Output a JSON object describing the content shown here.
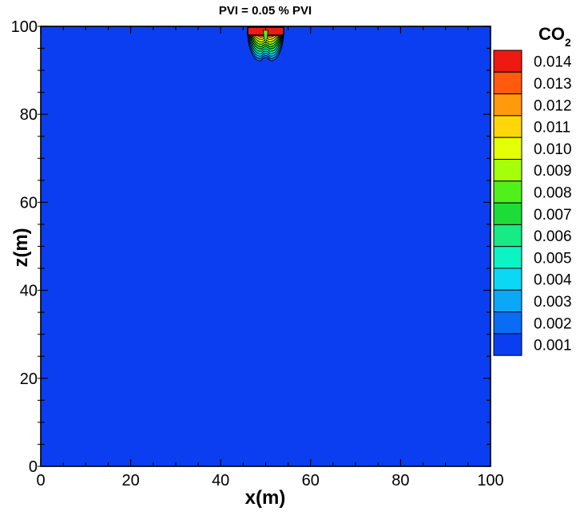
{
  "chart_data": {
    "type": "heatmap",
    "title": "PVI = 0.05 % PVI",
    "xlabel": "x(m)",
    "ylabel": "z(m)",
    "xlim": [
      0,
      100
    ],
    "ylim": [
      0,
      100
    ],
    "x_ticks": [
      "0",
      "20",
      "40",
      "60",
      "80",
      "100"
    ],
    "y_ticks": [
      "0",
      "20",
      "40",
      "60",
      "80",
      "100"
    ],
    "background_color": "#0a3ef0",
    "legend": {
      "title_main": "CO",
      "title_sub": "2",
      "levels": [
        {
          "label": "0.014",
          "value": 0.014,
          "color": "#ee1a12"
        },
        {
          "label": "0.013",
          "value": 0.013,
          "color": "#ff5a0d"
        },
        {
          "label": "0.012",
          "value": 0.012,
          "color": "#ff9a0c"
        },
        {
          "label": "0.011",
          "value": 0.011,
          "color": "#ffd60a"
        },
        {
          "label": "0.010",
          "value": 0.01,
          "color": "#e4ff06"
        },
        {
          "label": "0.009",
          "value": 0.009,
          "color": "#a6ff0a"
        },
        {
          "label": "0.008",
          "value": 0.008,
          "color": "#52f01a"
        },
        {
          "label": "0.007",
          "value": 0.007,
          "color": "#1edc38"
        },
        {
          "label": "0.006",
          "value": 0.006,
          "color": "#16eb86"
        },
        {
          "label": "0.005",
          "value": 0.005,
          "color": "#0cf4c4"
        },
        {
          "label": "0.004",
          "value": 0.004,
          "color": "#0ad8f4"
        },
        {
          "label": "0.003",
          "value": 0.003,
          "color": "#0aa8f6"
        },
        {
          "label": "0.002",
          "value": 0.002,
          "color": "#0a6cf4"
        },
        {
          "label": "0.001",
          "value": 0.001,
          "color": "#0a3ef0"
        }
      ]
    },
    "plume": {
      "center_x": 50,
      "source_x": [
        46,
        54
      ],
      "source_z": [
        98,
        100
      ],
      "bottom_z": 91.8
    }
  }
}
